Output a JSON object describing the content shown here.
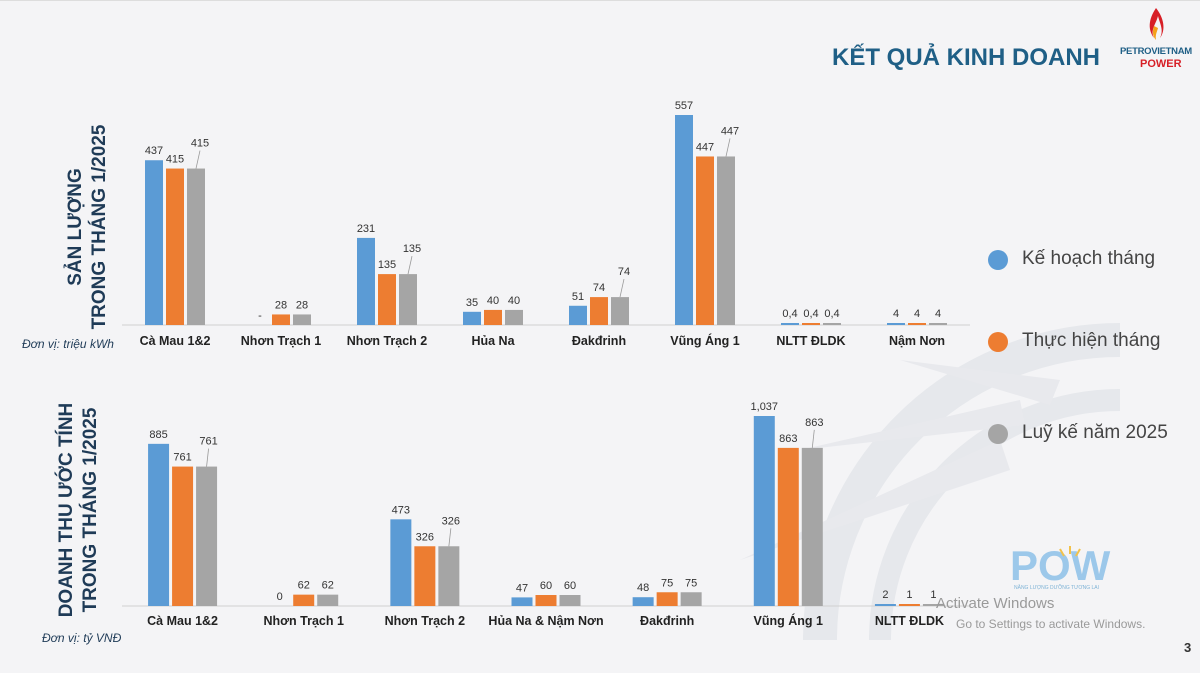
{
  "header": {
    "title": "KẾT QUẢ KINH DOANH",
    "logo_line1": "PETROVIETNAM",
    "logo_line2": "POWER"
  },
  "legend": [
    {
      "label": "Kế hoạch tháng",
      "color": "#5b9bd5"
    },
    {
      "label": "Thực hiện tháng",
      "color": "#ed7d31"
    },
    {
      "label": "Luỹ kế năm 2025",
      "color": "#a5a5a5"
    }
  ],
  "chart_data": [
    {
      "type": "bar",
      "title_line1": "SẢN LƯỢNG",
      "title_line2": "TRONG THÁNG 1/2025",
      "unit": "Đơn vị: triệu kWh",
      "categories": [
        "Cà Mau 1&2",
        "Nhơn Trạch 1",
        "Nhơn Trạch 2",
        "Hủa Na",
        "Đakđrinh",
        "Vũng Áng 1",
        "NLTT ĐLDK",
        "Nậm Nơn"
      ],
      "series": [
        {
          "name": "Kế hoạch tháng",
          "values": [
            437,
            0,
            231,
            35,
            51,
            557,
            0.4,
            4
          ],
          "labels": [
            "437",
            "-",
            "231",
            "35",
            "51",
            "557",
            "0,4",
            "4"
          ]
        },
        {
          "name": "Thực hiện tháng",
          "values": [
            415,
            28,
            135,
            40,
            74,
            447,
            0.4,
            4
          ],
          "labels": [
            "415",
            "28",
            "135",
            "40",
            "74",
            "447",
            "0,4",
            "4"
          ]
        },
        {
          "name": "Luỹ kế năm 2025",
          "values": [
            415,
            28,
            135,
            40,
            74,
            447,
            0.4,
            4
          ],
          "labels": [
            "415",
            "28",
            "135",
            "40",
            "74",
            "447",
            "0,4",
            "4"
          ]
        }
      ],
      "ylim": [
        0,
        557
      ]
    },
    {
      "type": "bar",
      "title_line1": "DOANH THU ƯỚC TÍNH",
      "title_line2": "TRONG THÁNG 1/2025",
      "unit": "Đơn vị: tỷ VNĐ",
      "categories": [
        "Cà Mau 1&2",
        "Nhơn Trạch 1",
        "Nhơn Trạch 2",
        "Hủa Na & Nậm Nơn",
        "Đakđrinh",
        "Vũng Áng 1",
        "NLTT ĐLDK"
      ],
      "series": [
        {
          "name": "Kế hoạch tháng",
          "values": [
            885,
            0,
            473,
            47,
            48,
            1037,
            2
          ],
          "labels": [
            "885",
            "0",
            "473",
            "47",
            "48",
            "1,037",
            "2"
          ]
        },
        {
          "name": "Thực hiện tháng",
          "values": [
            761,
            62,
            326,
            60,
            75,
            863,
            1
          ],
          "labels": [
            "761",
            "62",
            "326",
            "60",
            "75",
            "863",
            "1"
          ]
        },
        {
          "name": "Luỹ kế năm 2025",
          "values": [
            761,
            62,
            326,
            60,
            75,
            863,
            1
          ],
          "labels": [
            "761",
            "62",
            "326",
            "60",
            "75",
            "863",
            "1"
          ]
        }
      ],
      "ylim": [
        0,
        1037
      ]
    }
  ],
  "footer": {
    "page_number": "3",
    "watermark_line1": "Activate Windows",
    "watermark_line2": "Go to Settings to activate Windows.",
    "pow_logo": "POW",
    "pow_tagline": "NĂNG LƯỢNG DƯỠNG TƯƠNG LAI"
  }
}
